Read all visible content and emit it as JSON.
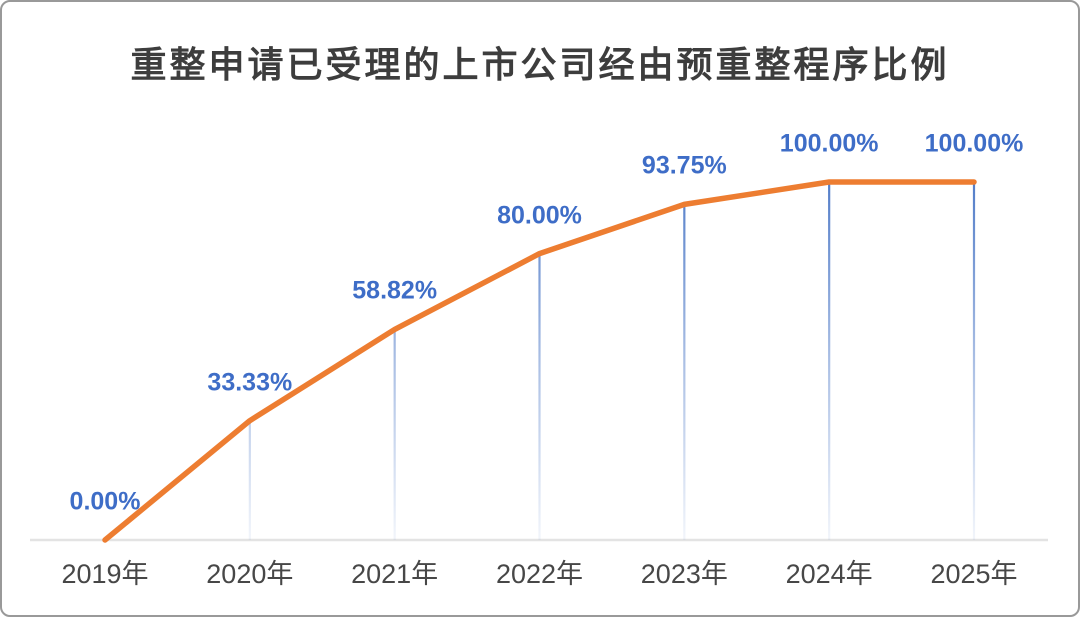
{
  "page": {
    "background_color": "#FFFFFF",
    "border_color": "#999999"
  },
  "chart_data": {
    "type": "line",
    "title": "重整申请已受理的上市公司经由预重整程序比例",
    "categories": [
      "2019年",
      "2020年",
      "2021年",
      "2022年",
      "2023年",
      "2024年",
      "2025年"
    ],
    "values": [
      0,
      33.33,
      58.82,
      80.0,
      93.75,
      100.0,
      100.0
    ],
    "point_labels": [
      "0.00%",
      "33.33%",
      "58.82%",
      "80.00%",
      "93.75%",
      "100.00%",
      "100.00%"
    ],
    "xlabel": "",
    "ylabel": "",
    "ylim": [
      0,
      100
    ],
    "legend": "none",
    "grid": "off",
    "y_axis_visible": false,
    "label_position": "above-points",
    "droplines": "vertical, fading toward baseline",
    "style": {
      "line_color": "#ED7D31",
      "dropline_color": "#4472C4",
      "point_label_color": "#3E6DC7",
      "axis_label_color": "#474747",
      "axis_line_color": "#E3E3E3",
      "title_color": "#3D3D3D"
    }
  }
}
